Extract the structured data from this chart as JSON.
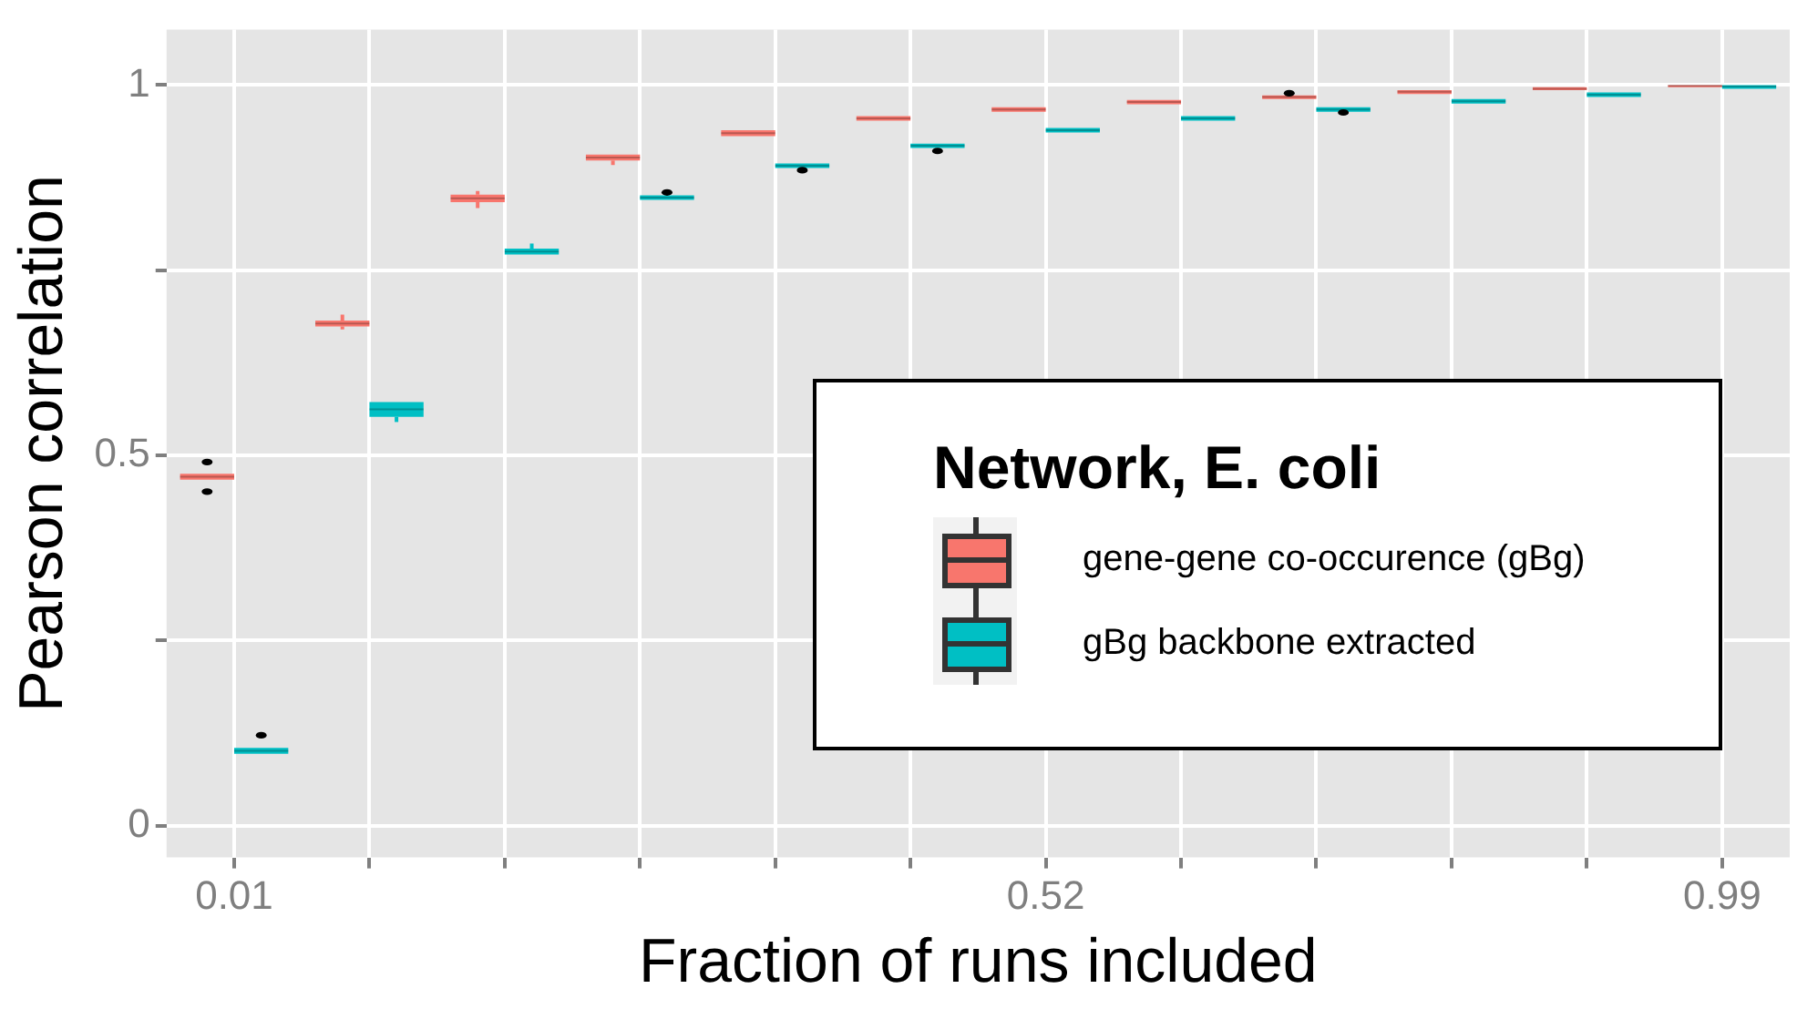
{
  "chart_data": {
    "type": "box",
    "xlabel": "Fraction of runs included",
    "ylabel": "Pearson correlation",
    "legend_title": "Network, E. coli",
    "legend": "bottom right",
    "grid": true,
    "categories": [
      "0.01",
      null,
      null,
      null,
      null,
      null,
      "0.52",
      null,
      null,
      null,
      null,
      "0.99"
    ],
    "ylim": [
      -0.043,
      1.075
    ],
    "yticks": [
      0,
      {
        "value": 0.25,
        "label": null
      },
      0.5,
      {
        "value": 0.75,
        "label": null
      },
      1
    ],
    "series": [
      {
        "name": "gene-gene co-occurence (gBg)",
        "color": "#f8766d",
        "boxes": [
          {
            "low": 0.467,
            "q1": 0.467,
            "median": 0.471,
            "q3": 0.475,
            "high": 0.475,
            "outliers": [
              0.451,
              0.491
            ]
          },
          {
            "low": 0.67,
            "q1": 0.674,
            "median": 0.678,
            "q3": 0.682,
            "high": 0.69
          },
          {
            "low": 0.834,
            "q1": 0.842,
            "median": 0.847,
            "q3": 0.852,
            "high": 0.857
          },
          {
            "low": 0.892,
            "q1": 0.898,
            "median": 0.902,
            "q3": 0.906,
            "high": 0.906
          },
          {
            "low": 0.931,
            "q1": 0.931,
            "median": 0.935,
            "q3": 0.939,
            "high": 0.939
          },
          {
            "low": 0.952,
            "q1": 0.952,
            "median": 0.955,
            "q3": 0.958,
            "high": 0.958
          },
          {
            "low": 0.964,
            "q1": 0.964,
            "median": 0.967,
            "q3": 0.97,
            "high": 0.97
          },
          {
            "low": 0.974,
            "q1": 0.974,
            "median": 0.977,
            "q3": 0.98,
            "high": 0.98
          },
          {
            "low": 0.981,
            "q1": 0.981,
            "median": 0.984,
            "q3": 0.986,
            "high": 0.986,
            "outliers": [
              0.989
            ]
          },
          {
            "low": 0.988,
            "q1": 0.988,
            "median": 0.991,
            "q3": 0.993,
            "high": 0.993
          },
          {
            "low": 0.993,
            "q1": 0.993,
            "median": 0.995,
            "q3": 0.997,
            "high": 0.997
          },
          {
            "low": 0.997,
            "q1": 0.997,
            "median": 0.999,
            "q3": 1.0,
            "high": 1.0
          }
        ]
      },
      {
        "name": "gBg backbone extracted",
        "color": "#00bfc4",
        "boxes": [
          {
            "low": 0.097,
            "q1": 0.097,
            "median": 0.101,
            "q3": 0.105,
            "high": 0.105,
            "outliers": [
              0.122
            ]
          },
          {
            "low": 0.545,
            "q1": 0.552,
            "median": 0.562,
            "q3": 0.572,
            "high": 0.572
          },
          {
            "low": 0.771,
            "q1": 0.771,
            "median": 0.775,
            "q3": 0.779,
            "high": 0.786
          },
          {
            "low": 0.845,
            "q1": 0.845,
            "median": 0.848,
            "q3": 0.851,
            "high": 0.851,
            "outliers": [
              0.855
            ]
          },
          {
            "low": 0.888,
            "q1": 0.888,
            "median": 0.891,
            "q3": 0.894,
            "high": 0.894,
            "outliers": [
              0.885
            ]
          },
          {
            "low": 0.915,
            "q1": 0.915,
            "median": 0.918,
            "q3": 0.921,
            "high": 0.921,
            "outliers": [
              0.911
            ]
          },
          {
            "low": 0.936,
            "q1": 0.936,
            "median": 0.939,
            "q3": 0.942,
            "high": 0.942
          },
          {
            "low": 0.952,
            "q1": 0.952,
            "median": 0.955,
            "q3": 0.958,
            "high": 0.958
          },
          {
            "low": 0.964,
            "q1": 0.964,
            "median": 0.967,
            "q3": 0.97,
            "high": 0.97,
            "outliers": [
              0.963
            ]
          },
          {
            "low": 0.975,
            "q1": 0.975,
            "median": 0.978,
            "q3": 0.981,
            "high": 0.981
          },
          {
            "low": 0.984,
            "q1": 0.984,
            "median": 0.987,
            "q3": 0.99,
            "high": 0.99
          },
          {
            "low": 0.995,
            "q1": 0.995,
            "median": 0.998,
            "q3": 1.0,
            "high": 1.0
          }
        ]
      }
    ]
  }
}
